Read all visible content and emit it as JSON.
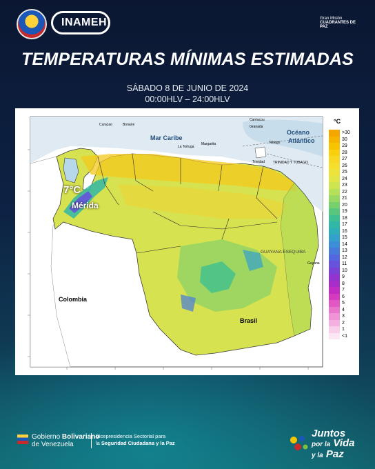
{
  "header": {
    "logo_text": "INAMEH",
    "gran_mision_line1": "Gran Misión",
    "gran_mision_line2": "CUADRANTES DE PAZ"
  },
  "title": "TEMPERATURAS MÍNIMAS ESTIMADAS",
  "date": "SÁBADO  8 DE JUNIO DE 2024",
  "hours": "00:00HLV – 24:00HLV",
  "map": {
    "legend_title": "°C",
    "legend": [
      {
        "label": ">30",
        "color": "#f5a700"
      },
      {
        "label": "30",
        "color": "#f7b500"
      },
      {
        "label": "29",
        "color": "#f8c300"
      },
      {
        "label": "28",
        "color": "#f9cf0f"
      },
      {
        "label": "27",
        "color": "#f9d823"
      },
      {
        "label": "26",
        "color": "#f6de2c"
      },
      {
        "label": "25",
        "color": "#eee33a"
      },
      {
        "label": "24",
        "color": "#e1e646"
      },
      {
        "label": "23",
        "color": "#cfe54f"
      },
      {
        "label": "22",
        "color": "#b5e05a"
      },
      {
        "label": "21",
        "color": "#97d963"
      },
      {
        "label": "20",
        "color": "#77d06e"
      },
      {
        "label": "19",
        "color": "#58c77d"
      },
      {
        "label": "18",
        "color": "#3ebf90"
      },
      {
        "label": "17",
        "color": "#30b7a5"
      },
      {
        "label": "16",
        "color": "#2eaebb"
      },
      {
        "label": "15",
        "color": "#34a0cc"
      },
      {
        "label": "14",
        "color": "#3c8fd6"
      },
      {
        "label": "13",
        "color": "#467bdc"
      },
      {
        "label": "12",
        "color": "#5567df"
      },
      {
        "label": "11",
        "color": "#6753dc"
      },
      {
        "label": "10",
        "color": "#7b42d6"
      },
      {
        "label": "9",
        "color": "#9234cf"
      },
      {
        "label": "8",
        "color": "#a92dc8"
      },
      {
        "label": "7",
        "color": "#c22cc2"
      },
      {
        "label": "6",
        "color": "#d43bbf"
      },
      {
        "label": "5",
        "color": "#e157c4"
      },
      {
        "label": "4",
        "color": "#ea75cd"
      },
      {
        "label": "3",
        "color": "#f093d7"
      },
      {
        "label": "2",
        "color": "#f4b1e0"
      },
      {
        "label": "1",
        "color": "#f8cfea"
      },
      {
        "label": "<1",
        "color": "#fbe6f3"
      }
    ],
    "labels": {
      "mar_caribe": "Mar Caribe",
      "oceano": "Océano",
      "atlantico": "Atlántico",
      "colombia": "Colombia",
      "brasil": "Brasil",
      "guayana": "GUAYANA ESEQUIBA",
      "curazao": "Curazao",
      "bonaire": "Bonaire",
      "trinidad": "Trinidad",
      "tobago": "Tobago",
      "granada": "Granada",
      "carriacou": "Carriacou",
      "guyana": "Guyana",
      "trinidad_limit": "TRINIDAD Y TOBAGO",
      "la_tortuga": "La Tortuga",
      "margarita": "Margarita"
    },
    "merida_temp": "7°C",
    "merida_name": "Mérida"
  },
  "footer": {
    "gob_line1_plain": "Gobierno ",
    "gob_line1_bold": "Bolivariano",
    "gob_line2": "de Venezuela",
    "vice_line1": "Vicepresidencia Sectorial para",
    "vice_line2_plain": "la ",
    "vice_line2_bold": "Seguridad Ciudadana y la Paz",
    "juntos_line1": "Juntos",
    "juntos_line2_small": "por la",
    "juntos_line2": "Vida",
    "juntos_line3_small": "y la",
    "juntos_line3": "Paz"
  }
}
